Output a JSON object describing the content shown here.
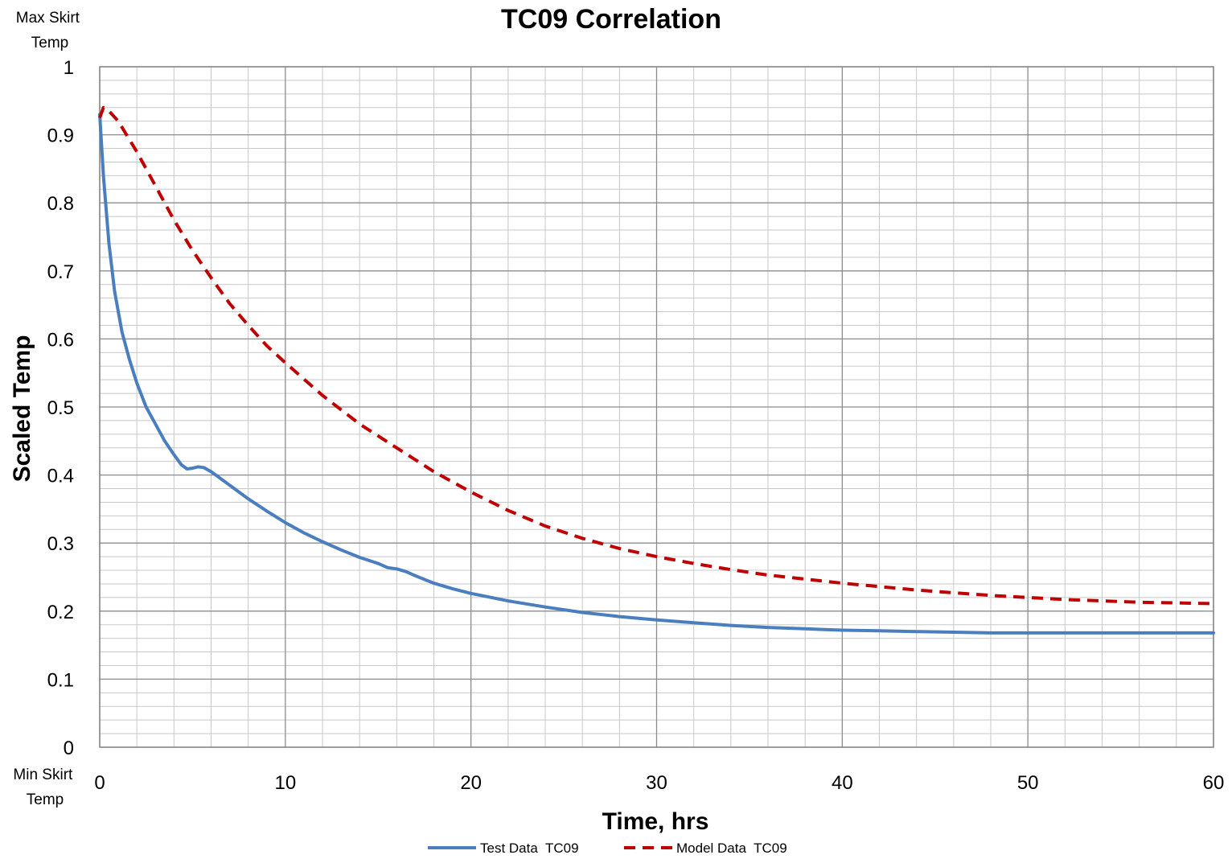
{
  "chart_data": {
    "type": "line",
    "title": "TC09 Correlation",
    "xlabel": "Time, hrs",
    "ylabel": "Scaled Temp",
    "xlim": [
      0,
      60
    ],
    "ylim": [
      0,
      1
    ],
    "x_ticks": [
      "0",
      "10",
      "20",
      "30",
      "40",
      "50",
      "60"
    ],
    "y_ticks": [
      "0",
      "0.1",
      "0.2",
      "0.3",
      "0.4",
      "0.5",
      "0.6",
      "0.7",
      "0.8",
      "0.9",
      "1"
    ],
    "y_annotations": {
      "top": [
        "Max Skirt",
        "Temp"
      ],
      "bottom": [
        "Min Skirt",
        "Temp"
      ]
    },
    "grid": true,
    "legend_position": "bottom",
    "series": [
      {
        "name": "Test Data  TC09",
        "color": "#4a7ebf",
        "style": "solid",
        "x": [
          0,
          0.2,
          0.5,
          0.8,
          1.2,
          1.6,
          2,
          2.5,
          3,
          3.5,
          4,
          4.4,
          4.7,
          5,
          5.3,
          5.6,
          6,
          7,
          8,
          9,
          10,
          11,
          12,
          13,
          14,
          15,
          15.5,
          16,
          16.5,
          17,
          18,
          19,
          20,
          22,
          24,
          26,
          28,
          30,
          32,
          34,
          36,
          38,
          40,
          42,
          44,
          46,
          48,
          50,
          52,
          54,
          56,
          58,
          60
        ],
        "y": [
          0.93,
          0.84,
          0.74,
          0.67,
          0.61,
          0.57,
          0.535,
          0.5,
          0.475,
          0.45,
          0.43,
          0.415,
          0.409,
          0.41,
          0.412,
          0.411,
          0.405,
          0.385,
          0.365,
          0.347,
          0.33,
          0.315,
          0.302,
          0.29,
          0.279,
          0.27,
          0.264,
          0.262,
          0.258,
          0.252,
          0.241,
          0.233,
          0.226,
          0.215,
          0.206,
          0.198,
          0.192,
          0.187,
          0.183,
          0.179,
          0.176,
          0.174,
          0.172,
          0.171,
          0.17,
          0.169,
          0.168,
          0.168,
          0.168,
          0.168,
          0.168,
          0.168,
          0.168
        ]
      },
      {
        "name": "Model Data  TC09",
        "color": "#c00000",
        "style": "dashed",
        "x": [
          0,
          0.2,
          0.5,
          1,
          2,
          3,
          4,
          5,
          6,
          7,
          8,
          9,
          10,
          12,
          14,
          16,
          18,
          20,
          22,
          24,
          26,
          28,
          30,
          32,
          34,
          36,
          38,
          40,
          42,
          44,
          46,
          48,
          50,
          52,
          54,
          56,
          58,
          60
        ],
        "y": [
          0.925,
          0.94,
          0.935,
          0.92,
          0.875,
          0.825,
          0.775,
          0.73,
          0.69,
          0.652,
          0.62,
          0.59,
          0.565,
          0.517,
          0.475,
          0.44,
          0.405,
          0.375,
          0.348,
          0.325,
          0.307,
          0.292,
          0.28,
          0.27,
          0.261,
          0.253,
          0.247,
          0.241,
          0.236,
          0.231,
          0.227,
          0.223,
          0.22,
          0.217,
          0.215,
          0.213,
          0.212,
          0.211
        ]
      }
    ]
  }
}
